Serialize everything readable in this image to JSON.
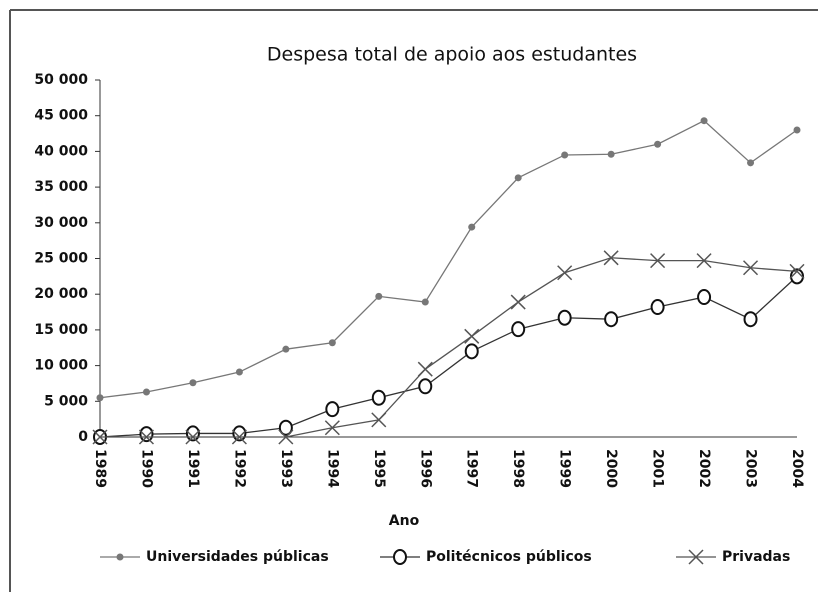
{
  "chart_data": {
    "type": "line",
    "title": "Despesa total de apoio aos estudantes",
    "x_label": "Ano",
    "categories": [
      "1989",
      "1990",
      "1991",
      "1992",
      "1993",
      "1994",
      "1995",
      "1996",
      "1997",
      "1998",
      "1999",
      "2000",
      "2001",
      "2002",
      "2003",
      "2004"
    ],
    "series": [
      {
        "name": "Universidades públicas",
        "color": "#777777",
        "marker": "dot",
        "values": [
          5500,
          6300,
          7600,
          9100,
          12300,
          13200,
          19700,
          18900,
          29400,
          36300,
          39500,
          39600,
          41000,
          44300,
          38400,
          43000
        ]
      },
      {
        "name": "Politécnicos públicos",
        "color": "#333333",
        "marker": "circle",
        "values": [
          0,
          400,
          500,
          500,
          1300,
          3900,
          5500,
          7100,
          12000,
          15100,
          16700,
          16500,
          18200,
          19600,
          16500,
          22500
        ]
      },
      {
        "name": "Privadas",
        "color": "#555555",
        "marker": "x",
        "values": [
          0,
          0,
          0,
          0,
          0,
          1300,
          2400,
          9500,
          14100,
          18900,
          23000,
          25100,
          24700,
          24700,
          23700,
          23200
        ]
      }
    ],
    "ylim": [
      0,
      50000
    ],
    "yticks": [
      0,
      {
        "value": 5000,
        "label": "5 000"
      },
      {
        "value": 10000,
        "label": "10 000"
      },
      {
        "value": 15000,
        "label": "15 000"
      },
      {
        "value": 20000,
        "label": "20 000"
      },
      {
        "value": 25000,
        "label": "25 000"
      },
      {
        "value": 30000,
        "label": "30 000"
      },
      {
        "value": 35000,
        "label": "35 000"
      },
      {
        "value": 40000,
        "label": "40 000"
      },
      {
        "value": 45000,
        "label": "45 000"
      },
      {
        "value": 50000,
        "label": "50 000"
      }
    ],
    "grid": false
  }
}
